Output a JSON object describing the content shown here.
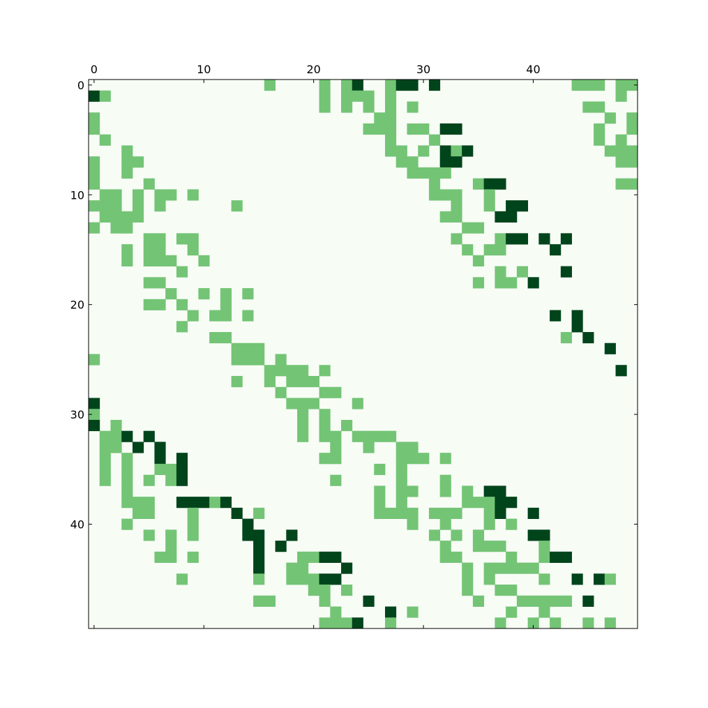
{
  "chart_data": {
    "type": "heatmap",
    "title": "",
    "xlabel": "",
    "ylabel": "",
    "rows": 50,
    "cols": 50,
    "x_axis_position": "top",
    "xlim": [
      -0.5,
      49.5
    ],
    "ylim": [
      49.5,
      -0.5
    ],
    "x_ticks": [
      "0",
      "10",
      "20",
      "30",
      "40"
    ],
    "y_ticks": [
      "0",
      "10",
      "20",
      "30",
      "40"
    ],
    "grid": false,
    "legend": "none",
    "colormap": "Greens",
    "value_levels": [
      0,
      1,
      2
    ],
    "colors": {
      "0": "#f7fcf5",
      "1": "#74c476",
      "2": "#00441b"
    },
    "cells": [
      [
        0,
        16,
        1
      ],
      [
        0,
        21,
        1
      ],
      [
        0,
        23,
        1
      ],
      [
        0,
        24,
        2
      ],
      [
        0,
        27,
        1
      ],
      [
        0,
        28,
        2
      ],
      [
        0,
        29,
        2
      ],
      [
        0,
        31,
        2
      ],
      [
        0,
        44,
        1
      ],
      [
        0,
        45,
        1
      ],
      [
        0,
        46,
        1
      ],
      [
        0,
        48,
        1
      ],
      [
        0,
        49,
        1
      ],
      [
        1,
        0,
        2
      ],
      [
        1,
        1,
        1
      ],
      [
        1,
        21,
        1
      ],
      [
        1,
        23,
        1
      ],
      [
        1,
        24,
        1
      ],
      [
        1,
        25,
        1
      ],
      [
        1,
        27,
        1
      ],
      [
        1,
        48,
        1
      ],
      [
        2,
        21,
        1
      ],
      [
        2,
        23,
        1
      ],
      [
        2,
        25,
        1
      ],
      [
        2,
        27,
        1
      ],
      [
        2,
        29,
        1
      ],
      [
        2,
        45,
        1
      ],
      [
        2,
        46,
        1
      ],
      [
        3,
        0,
        1
      ],
      [
        3,
        26,
        1
      ],
      [
        3,
        27,
        1
      ],
      [
        3,
        47,
        1
      ],
      [
        3,
        49,
        1
      ],
      [
        4,
        0,
        1
      ],
      [
        4,
        25,
        1
      ],
      [
        4,
        26,
        1
      ],
      [
        4,
        27,
        1
      ],
      [
        4,
        29,
        1
      ],
      [
        4,
        30,
        1
      ],
      [
        4,
        32,
        2
      ],
      [
        4,
        33,
        2
      ],
      [
        4,
        46,
        1
      ],
      [
        4,
        49,
        1
      ],
      [
        5,
        1,
        1
      ],
      [
        5,
        27,
        1
      ],
      [
        5,
        31,
        1
      ],
      [
        5,
        46,
        1
      ],
      [
        5,
        48,
        1
      ],
      [
        6,
        3,
        1
      ],
      [
        6,
        27,
        1
      ],
      [
        6,
        28,
        1
      ],
      [
        6,
        30,
        1
      ],
      [
        6,
        32,
        2
      ],
      [
        6,
        33,
        1
      ],
      [
        6,
        34,
        2
      ],
      [
        6,
        47,
        1
      ],
      [
        6,
        48,
        1
      ],
      [
        6,
        49,
        1
      ],
      [
        7,
        0,
        1
      ],
      [
        7,
        3,
        1
      ],
      [
        7,
        4,
        1
      ],
      [
        7,
        28,
        1
      ],
      [
        7,
        29,
        1
      ],
      [
        7,
        32,
        2
      ],
      [
        7,
        33,
        2
      ],
      [
        7,
        48,
        1
      ],
      [
        7,
        49,
        1
      ],
      [
        8,
        0,
        1
      ],
      [
        8,
        3,
        1
      ],
      [
        8,
        29,
        1
      ],
      [
        8,
        30,
        1
      ],
      [
        8,
        31,
        1
      ],
      [
        8,
        32,
        1
      ],
      [
        9,
        0,
        1
      ],
      [
        9,
        5,
        1
      ],
      [
        9,
        31,
        1
      ],
      [
        9,
        35,
        1
      ],
      [
        9,
        36,
        2
      ],
      [
        9,
        37,
        2
      ],
      [
        9,
        48,
        1
      ],
      [
        9,
        49,
        1
      ],
      [
        10,
        1,
        1
      ],
      [
        10,
        2,
        1
      ],
      [
        10,
        4,
        1
      ],
      [
        10,
        6,
        1
      ],
      [
        10,
        7,
        1
      ],
      [
        10,
        9,
        1
      ],
      [
        10,
        31,
        1
      ],
      [
        10,
        32,
        1
      ],
      [
        10,
        33,
        1
      ],
      [
        10,
        36,
        1
      ],
      [
        11,
        0,
        1
      ],
      [
        11,
        1,
        1
      ],
      [
        11,
        2,
        1
      ],
      [
        11,
        4,
        1
      ],
      [
        11,
        6,
        1
      ],
      [
        11,
        13,
        1
      ],
      [
        11,
        33,
        1
      ],
      [
        11,
        36,
        1
      ],
      [
        11,
        38,
        2
      ],
      [
        11,
        39,
        2
      ],
      [
        12,
        1,
        1
      ],
      [
        12,
        2,
        1
      ],
      [
        12,
        3,
        1
      ],
      [
        12,
        4,
        1
      ],
      [
        12,
        32,
        1
      ],
      [
        12,
        33,
        1
      ],
      [
        12,
        37,
        2
      ],
      [
        12,
        38,
        2
      ],
      [
        13,
        0,
        1
      ],
      [
        13,
        2,
        1
      ],
      [
        13,
        3,
        1
      ],
      [
        13,
        34,
        1
      ],
      [
        13,
        35,
        1
      ],
      [
        14,
        5,
        1
      ],
      [
        14,
        6,
        1
      ],
      [
        14,
        8,
        1
      ],
      [
        14,
        9,
        1
      ],
      [
        14,
        33,
        1
      ],
      [
        14,
        37,
        1
      ],
      [
        14,
        38,
        2
      ],
      [
        14,
        39,
        2
      ],
      [
        14,
        41,
        2
      ],
      [
        14,
        43,
        2
      ],
      [
        15,
        3,
        1
      ],
      [
        15,
        5,
        1
      ],
      [
        15,
        6,
        1
      ],
      [
        15,
        9,
        1
      ],
      [
        15,
        34,
        1
      ],
      [
        15,
        36,
        1
      ],
      [
        15,
        37,
        1
      ],
      [
        15,
        42,
        2
      ],
      [
        16,
        3,
        1
      ],
      [
        16,
        5,
        1
      ],
      [
        16,
        6,
        1
      ],
      [
        16,
        7,
        1
      ],
      [
        16,
        10,
        1
      ],
      [
        16,
        35,
        1
      ],
      [
        17,
        8,
        1
      ],
      [
        17,
        37,
        1
      ],
      [
        17,
        39,
        1
      ],
      [
        17,
        43,
        2
      ],
      [
        18,
        5,
        1
      ],
      [
        18,
        6,
        1
      ],
      [
        18,
        35,
        1
      ],
      [
        18,
        37,
        1
      ],
      [
        18,
        38,
        1
      ],
      [
        18,
        40,
        2
      ],
      [
        19,
        7,
        1
      ],
      [
        19,
        10,
        1
      ],
      [
        19,
        12,
        1
      ],
      [
        19,
        14,
        1
      ],
      [
        20,
        5,
        1
      ],
      [
        20,
        6,
        1
      ],
      [
        20,
        8,
        1
      ],
      [
        20,
        12,
        1
      ],
      [
        21,
        9,
        1
      ],
      [
        21,
        11,
        1
      ],
      [
        21,
        12,
        1
      ],
      [
        21,
        14,
        1
      ],
      [
        21,
        42,
        2
      ],
      [
        21,
        44,
        2
      ],
      [
        22,
        8,
        1
      ],
      [
        22,
        44,
        2
      ],
      [
        23,
        11,
        1
      ],
      [
        23,
        12,
        1
      ],
      [
        23,
        43,
        1
      ],
      [
        23,
        45,
        2
      ],
      [
        24,
        13,
        1
      ],
      [
        24,
        14,
        1
      ],
      [
        24,
        15,
        1
      ],
      [
        24,
        47,
        2
      ],
      [
        25,
        0,
        1
      ],
      [
        25,
        13,
        1
      ],
      [
        25,
        14,
        1
      ],
      [
        25,
        15,
        1
      ],
      [
        25,
        17,
        1
      ],
      [
        26,
        16,
        1
      ],
      [
        26,
        17,
        1
      ],
      [
        26,
        18,
        1
      ],
      [
        26,
        19,
        1
      ],
      [
        26,
        21,
        1
      ],
      [
        26,
        48,
        2
      ],
      [
        27,
        13,
        1
      ],
      [
        27,
        16,
        1
      ],
      [
        27,
        18,
        1
      ],
      [
        27,
        19,
        1
      ],
      [
        27,
        20,
        1
      ],
      [
        28,
        17,
        1
      ],
      [
        28,
        21,
        1
      ],
      [
        28,
        22,
        1
      ],
      [
        29,
        0,
        2
      ],
      [
        29,
        18,
        1
      ],
      [
        29,
        19,
        1
      ],
      [
        29,
        20,
        1
      ],
      [
        29,
        24,
        1
      ],
      [
        30,
        0,
        1
      ],
      [
        30,
        19,
        1
      ],
      [
        30,
        21,
        1
      ],
      [
        31,
        0,
        2
      ],
      [
        31,
        2,
        1
      ],
      [
        31,
        19,
        1
      ],
      [
        31,
        21,
        1
      ],
      [
        31,
        23,
        1
      ],
      [
        32,
        1,
        1
      ],
      [
        32,
        2,
        1
      ],
      [
        32,
        3,
        2
      ],
      [
        32,
        5,
        2
      ],
      [
        32,
        19,
        1
      ],
      [
        32,
        21,
        1
      ],
      [
        32,
        22,
        1
      ],
      [
        32,
        24,
        1
      ],
      [
        32,
        25,
        1
      ],
      [
        32,
        26,
        1
      ],
      [
        32,
        27,
        1
      ],
      [
        33,
        1,
        1
      ],
      [
        33,
        2,
        1
      ],
      [
        33,
        4,
        2
      ],
      [
        33,
        6,
        2
      ],
      [
        33,
        22,
        1
      ],
      [
        33,
        25,
        1
      ],
      [
        33,
        28,
        1
      ],
      [
        33,
        29,
        1
      ],
      [
        34,
        1,
        1
      ],
      [
        34,
        3,
        1
      ],
      [
        34,
        6,
        2
      ],
      [
        34,
        8,
        2
      ],
      [
        34,
        21,
        1
      ],
      [
        34,
        22,
        1
      ],
      [
        34,
        28,
        1
      ],
      [
        34,
        29,
        1
      ],
      [
        34,
        30,
        1
      ],
      [
        34,
        32,
        1
      ],
      [
        35,
        1,
        1
      ],
      [
        35,
        3,
        1
      ],
      [
        35,
        6,
        1
      ],
      [
        35,
        7,
        1
      ],
      [
        35,
        8,
        2
      ],
      [
        35,
        26,
        1
      ],
      [
        35,
        28,
        1
      ],
      [
        36,
        1,
        1
      ],
      [
        36,
        3,
        1
      ],
      [
        36,
        5,
        1
      ],
      [
        36,
        7,
        1
      ],
      [
        36,
        8,
        2
      ],
      [
        36,
        22,
        1
      ],
      [
        36,
        28,
        1
      ],
      [
        36,
        32,
        1
      ],
      [
        37,
        3,
        1
      ],
      [
        37,
        26,
        1
      ],
      [
        37,
        28,
        1
      ],
      [
        37,
        29,
        1
      ],
      [
        37,
        32,
        1
      ],
      [
        37,
        34,
        1
      ],
      [
        37,
        36,
        2
      ],
      [
        37,
        37,
        2
      ],
      [
        38,
        3,
        1
      ],
      [
        38,
        4,
        1
      ],
      [
        38,
        5,
        1
      ],
      [
        38,
        8,
        2
      ],
      [
        38,
        9,
        2
      ],
      [
        38,
        10,
        2
      ],
      [
        38,
        11,
        1
      ],
      [
        38,
        12,
        2
      ],
      [
        38,
        26,
        1
      ],
      [
        38,
        28,
        1
      ],
      [
        38,
        34,
        1
      ],
      [
        38,
        35,
        1
      ],
      [
        38,
        36,
        1
      ],
      [
        38,
        37,
        2
      ],
      [
        38,
        38,
        2
      ],
      [
        39,
        4,
        1
      ],
      [
        39,
        5,
        1
      ],
      [
        39,
        9,
        1
      ],
      [
        39,
        13,
        2
      ],
      [
        39,
        15,
        1
      ],
      [
        39,
        26,
        1
      ],
      [
        39,
        27,
        1
      ],
      [
        39,
        28,
        1
      ],
      [
        39,
        29,
        1
      ],
      [
        39,
        31,
        1
      ],
      [
        39,
        32,
        1
      ],
      [
        39,
        33,
        1
      ],
      [
        39,
        36,
        1
      ],
      [
        39,
        37,
        2
      ],
      [
        39,
        40,
        2
      ],
      [
        40,
        3,
        1
      ],
      [
        40,
        9,
        1
      ],
      [
        40,
        14,
        2
      ],
      [
        40,
        29,
        1
      ],
      [
        40,
        32,
        1
      ],
      [
        40,
        36,
        1
      ],
      [
        40,
        38,
        1
      ],
      [
        41,
        5,
        1
      ],
      [
        41,
        7,
        1
      ],
      [
        41,
        9,
        1
      ],
      [
        41,
        14,
        2
      ],
      [
        41,
        15,
        2
      ],
      [
        41,
        18,
        2
      ],
      [
        41,
        31,
        1
      ],
      [
        41,
        33,
        1
      ],
      [
        41,
        35,
        1
      ],
      [
        41,
        40,
        2
      ],
      [
        41,
        41,
        2
      ],
      [
        42,
        7,
        1
      ],
      [
        42,
        15,
        2
      ],
      [
        42,
        17,
        2
      ],
      [
        42,
        32,
        1
      ],
      [
        42,
        35,
        1
      ],
      [
        42,
        36,
        1
      ],
      [
        42,
        37,
        1
      ],
      [
        42,
        41,
        1
      ],
      [
        43,
        6,
        1
      ],
      [
        43,
        7,
        1
      ],
      [
        43,
        9,
        1
      ],
      [
        43,
        15,
        2
      ],
      [
        43,
        19,
        1
      ],
      [
        43,
        20,
        1
      ],
      [
        43,
        21,
        2
      ],
      [
        43,
        22,
        2
      ],
      [
        43,
        32,
        1
      ],
      [
        43,
        33,
        1
      ],
      [
        43,
        38,
        1
      ],
      [
        43,
        41,
        1
      ],
      [
        43,
        42,
        2
      ],
      [
        43,
        43,
        2
      ],
      [
        44,
        15,
        2
      ],
      [
        44,
        18,
        1
      ],
      [
        44,
        19,
        1
      ],
      [
        44,
        23,
        2
      ],
      [
        44,
        34,
        1
      ],
      [
        44,
        36,
        1
      ],
      [
        44,
        37,
        1
      ],
      [
        44,
        38,
        1
      ],
      [
        44,
        39,
        1
      ],
      [
        44,
        40,
        1
      ],
      [
        45,
        8,
        1
      ],
      [
        45,
        15,
        1
      ],
      [
        45,
        18,
        1
      ],
      [
        45,
        19,
        1
      ],
      [
        45,
        20,
        1
      ],
      [
        45,
        21,
        2
      ],
      [
        45,
        22,
        2
      ],
      [
        45,
        34,
        1
      ],
      [
        45,
        36,
        1
      ],
      [
        45,
        41,
        1
      ],
      [
        45,
        44,
        2
      ],
      [
        45,
        46,
        2
      ],
      [
        45,
        47,
        1
      ],
      [
        46,
        20,
        1
      ],
      [
        46,
        21,
        1
      ],
      [
        46,
        23,
        1
      ],
      [
        46,
        34,
        1
      ],
      [
        46,
        37,
        1
      ],
      [
        46,
        38,
        1
      ],
      [
        47,
        15,
        1
      ],
      [
        47,
        16,
        1
      ],
      [
        47,
        21,
        1
      ],
      [
        47,
        25,
        2
      ],
      [
        47,
        35,
        1
      ],
      [
        47,
        39,
        1
      ],
      [
        47,
        40,
        1
      ],
      [
        47,
        41,
        1
      ],
      [
        47,
        42,
        1
      ],
      [
        47,
        43,
        1
      ],
      [
        47,
        45,
        2
      ],
      [
        48,
        22,
        1
      ],
      [
        48,
        27,
        2
      ],
      [
        48,
        29,
        1
      ],
      [
        48,
        38,
        1
      ],
      [
        48,
        41,
        1
      ],
      [
        49,
        21,
        1
      ],
      [
        49,
        22,
        1
      ],
      [
        49,
        23,
        1
      ],
      [
        49,
        24,
        2
      ],
      [
        49,
        27,
        1
      ],
      [
        49,
        37,
        1
      ],
      [
        49,
        40,
        1
      ],
      [
        49,
        42,
        1
      ],
      [
        49,
        45,
        1
      ],
      [
        49,
        47,
        1
      ]
    ]
  }
}
